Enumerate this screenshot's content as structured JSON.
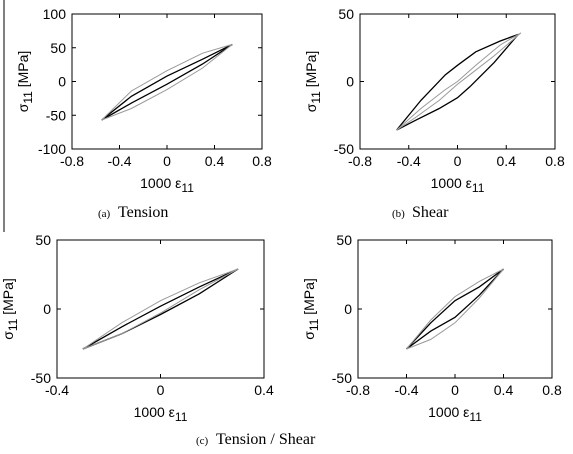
{
  "chart_data": [
    {
      "type": "line",
      "panel_label": "(a)",
      "caption": "Tension",
      "xlabel": "1000 ε",
      "xlabel_sub": "11",
      "ylabel": "σ",
      "ylabel_sub": "11",
      "ylabel_unit": "[MPa]",
      "xlim": [
        -0.8,
        0.8
      ],
      "ylim": [
        -100,
        100
      ],
      "x_ticks": [
        "-0.8",
        "-0.4",
        "0",
        "0.4",
        "0.8"
      ],
      "x_tick_values": [
        -0.8,
        -0.4,
        0,
        0.4,
        0.8
      ],
      "y_ticks": [
        "100",
        "50",
        "0",
        "-50",
        "-100"
      ],
      "y_tick_values": [
        100,
        50,
        0,
        -50,
        -100
      ],
      "grid": false,
      "series": [
        {
          "color": "#000000",
          "x": [
            -0.55,
            -0.3,
            0.0,
            0.3,
            0.55
          ],
          "y": [
            -57,
            -32,
            -4,
            26,
            55
          ]
        },
        {
          "color": "#000000",
          "x": [
            0.55,
            0.3,
            0.0,
            -0.3,
            -0.55
          ],
          "y": [
            55,
            33,
            8,
            -22,
            -57
          ]
        },
        {
          "color": "#999999",
          "x": [
            -0.55,
            -0.3,
            0.0,
            0.3,
            0.55
          ],
          "y": [
            -57,
            -40,
            -12,
            20,
            55
          ]
        },
        {
          "color": "#999999",
          "x": [
            0.55,
            0.3,
            0.0,
            -0.3,
            -0.55
          ],
          "y": [
            55,
            42,
            16,
            -14,
            -57
          ]
        }
      ]
    },
    {
      "type": "line",
      "panel_label": "(b)",
      "caption": "Shear",
      "xlabel": "1000 ε",
      "xlabel_sub": "11",
      "ylabel": "σ",
      "ylabel_sub": "11",
      "ylabel_unit": "[MPa]",
      "xlim": [
        -0.8,
        0.8
      ],
      "ylim": [
        -50,
        50
      ],
      "x_ticks": [
        "-0.8",
        "-0.4",
        "0",
        "0.4",
        "0.8"
      ],
      "x_tick_values": [
        -0.8,
        -0.4,
        0,
        0.4,
        0.8
      ],
      "y_ticks": [
        "50",
        "0",
        "-50"
      ],
      "y_tick_values": [
        50,
        0,
        -50
      ],
      "grid": false,
      "series": [
        {
          "color": "#000000",
          "x": [
            -0.5,
            -0.3,
            -0.1,
            0.0,
            0.15,
            0.35,
            0.5
          ],
          "y": [
            -36,
            -14,
            5,
            12,
            22,
            30,
            35
          ]
        },
        {
          "color": "#000000",
          "x": [
            0.5,
            0.3,
            0.1,
            0.0,
            -0.15,
            -0.35,
            -0.5
          ],
          "y": [
            35,
            14,
            -4,
            -12,
            -20,
            -29,
            -36
          ]
        },
        {
          "color": "#999999",
          "x": [
            -0.5,
            -0.3,
            -0.1,
            0.0,
            0.15,
            0.35,
            0.52
          ],
          "y": [
            -36,
            -20,
            -6,
            0,
            12,
            27,
            36
          ]
        },
        {
          "color": "#999999",
          "x": [
            0.52,
            0.3,
            0.1,
            0.0,
            -0.15,
            -0.35,
            -0.5
          ],
          "y": [
            36,
            19,
            5,
            -2,
            -14,
            -27,
            -36
          ]
        }
      ]
    },
    {
      "type": "line",
      "panel_label": "(c)",
      "caption": "Tension / Shear",
      "xlabel": "1000 ε",
      "xlabel_sub": "11",
      "ylabel": "σ",
      "ylabel_sub": "11",
      "ylabel_unit": "[MPa]",
      "xlim": [
        -0.4,
        0.4
      ],
      "ylim": [
        -50,
        50
      ],
      "x_ticks": [
        "-0.4",
        "0",
        "0.4"
      ],
      "x_tick_values": [
        -0.4,
        0,
        0.4
      ],
      "y_ticks": [
        "50",
        "0",
        "-50"
      ],
      "y_tick_values": [
        50,
        0,
        -50
      ],
      "grid": false,
      "series": [
        {
          "color": "#000000",
          "x": [
            -0.3,
            -0.15,
            0.0,
            0.15,
            0.3
          ],
          "y": [
            -29,
            -13,
            2,
            16,
            29
          ]
        },
        {
          "color": "#000000",
          "x": [
            0.3,
            0.15,
            0.0,
            -0.15,
            -0.3
          ],
          "y": [
            29,
            11,
            -4,
            -18,
            -29
          ]
        },
        {
          "color": "#999999",
          "x": [
            -0.3,
            -0.15,
            0.0,
            0.15,
            0.3
          ],
          "y": [
            -29,
            -18,
            -3,
            14,
            29
          ]
        },
        {
          "color": "#999999",
          "x": [
            0.3,
            0.15,
            0.0,
            -0.15,
            -0.3
          ],
          "y": [
            29,
            19,
            6,
            -10,
            -29
          ]
        }
      ]
    },
    {
      "type": "line",
      "panel_label": "",
      "caption": "",
      "xlabel": "1000 ε",
      "xlabel_sub": "11",
      "ylabel": "σ",
      "ylabel_sub": "11",
      "ylabel_unit": "[MPa]",
      "xlim": [
        -0.8,
        0.8
      ],
      "ylim": [
        -50,
        50
      ],
      "x_ticks": [
        "-0.8",
        "-0.4",
        "0",
        "0.4",
        "0.8"
      ],
      "x_tick_values": [
        -0.8,
        -0.4,
        0,
        0.4,
        0.8
      ],
      "y_ticks": [
        "50",
        "0",
        "-50"
      ],
      "y_tick_values": [
        50,
        0,
        -50
      ],
      "grid": false,
      "series": [
        {
          "color": "#000000",
          "x": [
            -0.4,
            -0.2,
            0.0,
            0.2,
            0.4
          ],
          "y": [
            -29,
            -16,
            -6,
            10,
            29
          ]
        },
        {
          "color": "#000000",
          "x": [
            0.4,
            0.2,
            0.0,
            -0.2,
            -0.4
          ],
          "y": [
            29,
            16,
            6,
            -10,
            -29
          ]
        },
        {
          "color": "#999999",
          "x": [
            -0.4,
            -0.2,
            0.0,
            0.2,
            0.4
          ],
          "y": [
            -29,
            -22,
            -10,
            8,
            29
          ]
        },
        {
          "color": "#999999",
          "x": [
            0.4,
            0.2,
            0.0,
            -0.2,
            -0.4
          ],
          "y": [
            29,
            20,
            9,
            -8,
            -29
          ]
        }
      ]
    }
  ],
  "figure": {
    "bottom_caption_label": "(c)",
    "bottom_caption": "Tension / Shear"
  }
}
